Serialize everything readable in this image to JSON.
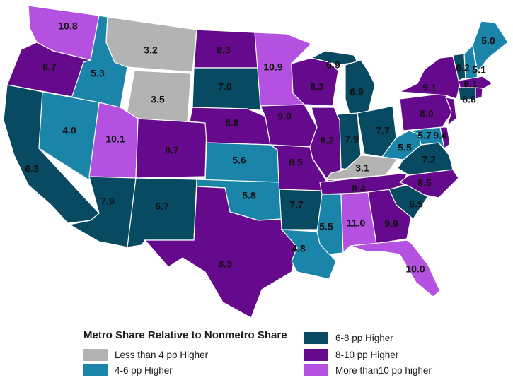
{
  "legend": {
    "title": "Metro Share Relative to Nonmetro Share",
    "categories": [
      {
        "key": "lt4",
        "label": "Less than 4 pp Higher",
        "color": "#b3b3b3"
      },
      {
        "key": "4to6",
        "label": "4-6 pp Higher",
        "color": "#1a85a8"
      },
      {
        "key": "6to8",
        "label": "6-8 pp Higher",
        "color": "#084a62"
      },
      {
        "key": "8to10",
        "label": "8-10 pp Higher",
        "color": "#650a8c"
      },
      {
        "key": "gt10",
        "label": "More than10 pp higher",
        "color": "#b451e0"
      }
    ]
  },
  "states": [
    {
      "abbr": "WA",
      "value": "10.8",
      "category": "gt10"
    },
    {
      "abbr": "OR",
      "value": "8.7",
      "category": "8to10"
    },
    {
      "abbr": "CA",
      "value": "6.3",
      "category": "6to8"
    },
    {
      "abbr": "ID",
      "value": "5.3",
      "category": "4to6"
    },
    {
      "abbr": "NV",
      "value": "4.0",
      "category": "4to6"
    },
    {
      "abbr": "MT",
      "value": "3.2",
      "category": "lt4"
    },
    {
      "abbr": "WY",
      "value": "3.5",
      "category": "lt4"
    },
    {
      "abbr": "UT",
      "value": "10.1",
      "category": "gt10"
    },
    {
      "abbr": "AZ",
      "value": "7.9",
      "category": "6to8"
    },
    {
      "abbr": "CO",
      "value": "8.7",
      "category": "8to10"
    },
    {
      "abbr": "NM",
      "value": "6.7",
      "category": "6to8"
    },
    {
      "abbr": "ND",
      "value": "8.3",
      "category": "8to10"
    },
    {
      "abbr": "SD",
      "value": "7.0",
      "category": "6to8"
    },
    {
      "abbr": "NE",
      "value": "8.8",
      "category": "8to10"
    },
    {
      "abbr": "KS",
      "value": "5.6",
      "category": "4to6"
    },
    {
      "abbr": "OK",
      "value": "5.8",
      "category": "4to6"
    },
    {
      "abbr": "TX",
      "value": "8.3",
      "category": "8to10"
    },
    {
      "abbr": "MN",
      "value": "10.9",
      "category": "gt10"
    },
    {
      "abbr": "IA",
      "value": "9.0",
      "category": "8to10"
    },
    {
      "abbr": "MO",
      "value": "8.5",
      "category": "8to10"
    },
    {
      "abbr": "AR",
      "value": "7.7",
      "category": "6to8"
    },
    {
      "abbr": "LA",
      "value": "4.8",
      "category": "4to6"
    },
    {
      "abbr": "WI",
      "value": "8.3",
      "category": "8to10"
    },
    {
      "abbr": "UP",
      "value": "6.9",
      "category": "6to8"
    },
    {
      "abbr": "MI",
      "value": "6.9",
      "category": "6to8"
    },
    {
      "abbr": "IL",
      "value": "8.2",
      "category": "8to10"
    },
    {
      "abbr": "IN",
      "value": "7.9",
      "category": "6to8"
    },
    {
      "abbr": "OH",
      "value": "7.7",
      "category": "6to8"
    },
    {
      "abbr": "KY",
      "value": "3.1",
      "category": "lt4"
    },
    {
      "abbr": "TN",
      "value": "8.4",
      "category": "8to10"
    },
    {
      "abbr": "MS",
      "value": "5.5",
      "category": "4to6"
    },
    {
      "abbr": "AL",
      "value": "11.0",
      "category": "gt10"
    },
    {
      "abbr": "GA",
      "value": "9.9",
      "category": "8to10"
    },
    {
      "abbr": "FL",
      "value": "10.0",
      "category": "gt10"
    },
    {
      "abbr": "SC",
      "value": "6.5",
      "category": "6to8"
    },
    {
      "abbr": "NC",
      "value": "9.5",
      "category": "8to10"
    },
    {
      "abbr": "VA",
      "value": "7.2",
      "category": "6to8"
    },
    {
      "abbr": "WV",
      "value": "5.5",
      "category": "4to6"
    },
    {
      "abbr": "MD",
      "value": "5.7",
      "category": "4to6"
    },
    {
      "abbr": "DE",
      "value": "9.4",
      "category": "8to10"
    },
    {
      "abbr": "PA",
      "value": "8.0",
      "category": "8to10"
    },
    {
      "abbr": "NJ",
      "value": "",
      "category": "8to10"
    },
    {
      "abbr": "NY",
      "value": "9.1",
      "category": "8to10"
    },
    {
      "abbr": "VT",
      "value": "6.2",
      "category": "6to8"
    },
    {
      "abbr": "NH",
      "value": "5.1",
      "category": "4to6"
    },
    {
      "abbr": "ME",
      "value": "5.0",
      "category": "4to6"
    },
    {
      "abbr": "MA",
      "value": "9.1",
      "category": "8to10"
    },
    {
      "abbr": "CT",
      "value": "6.6",
      "category": "6to8"
    },
    {
      "abbr": "RI",
      "value": "",
      "category": "8to10"
    }
  ]
}
